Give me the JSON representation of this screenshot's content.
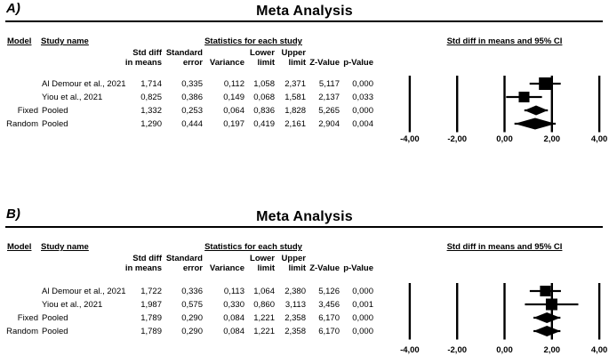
{
  "figure_title": "Meta Analysis",
  "colors": {
    "foreground": "#000000",
    "background": "#ffffff"
  },
  "panels": [
    {
      "panel_label": "A)",
      "title": "Meta Analysis",
      "table": {
        "col_model": "Model",
        "col_study": "Study name",
        "stats_group_header": "Statistics for each study",
        "plot_group_header": "Std diff in means and 95% CI",
        "stat_columns": [
          {
            "line1": "Std diff",
            "line2": "in means"
          },
          {
            "line1": "Standard",
            "line2": "error"
          },
          {
            "line1": "",
            "line2": "Variance"
          },
          {
            "line1": "Lower",
            "line2": "limit"
          },
          {
            "line1": "Upper",
            "line2": "limit"
          },
          {
            "line1": "",
            "line2": "Z-Value"
          },
          {
            "line1": "",
            "line2": "p-Value"
          }
        ],
        "rows": [
          {
            "model": "",
            "study": "Al Demour et al., 2021",
            "values": [
              "1,714",
              "0,335",
              "0,112",
              "1,058",
              "2,371",
              "5,117",
              "0,000"
            ]
          },
          {
            "model": "",
            "study": "Yiou et al., 2021",
            "values": [
              "0,825",
              "0,386",
              "0,149",
              "0,068",
              "1,581",
              "2,137",
              "0,033"
            ]
          },
          {
            "model": "Fixed",
            "study": "Pooled",
            "values": [
              "1,332",
              "0,253",
              "0,064",
              "0,836",
              "1,828",
              "5,265",
              "0,000"
            ]
          },
          {
            "model": "Random",
            "study": "Pooled",
            "values": [
              "1,290",
              "0,444",
              "0,197",
              "0,419",
              "2,161",
              "2,904",
              "0,004"
            ]
          }
        ]
      }
    },
    {
      "panel_label": "B)",
      "title": "Meta Analysis",
      "table": {
        "col_model": "Model",
        "col_study": "Study name",
        "stats_group_header": "Statistics for each study",
        "plot_group_header": "Std diff in means and 95% CI",
        "stat_columns": [
          {
            "line1": "Std diff",
            "line2": "in means"
          },
          {
            "line1": "Standard",
            "line2": "error"
          },
          {
            "line1": "",
            "line2": "Variance"
          },
          {
            "line1": "Lower",
            "line2": "limit"
          },
          {
            "line1": "Upper",
            "line2": "limit"
          },
          {
            "line1": "",
            "line2": "Z-Value"
          },
          {
            "line1": "",
            "line2": "p-Value"
          }
        ],
        "rows": [
          {
            "model": "",
            "study": "Al Demour et al., 2021",
            "values": [
              "1,722",
              "0,336",
              "0,113",
              "1,064",
              "2,380",
              "5,126",
              "0,000"
            ]
          },
          {
            "model": "",
            "study": "Yiou et al., 2021",
            "values": [
              "1,987",
              "0,575",
              "0,330",
              "0,860",
              "3,113",
              "3,456",
              "0,001"
            ]
          },
          {
            "model": "Fixed",
            "study": "Pooled",
            "values": [
              "1,789",
              "0,290",
              "0,084",
              "1,221",
              "2,358",
              "6,170",
              "0,000"
            ]
          },
          {
            "model": "Random",
            "study": "Pooled",
            "values": [
              "1,789",
              "0,290",
              "0,084",
              "1,221",
              "2,358",
              "6,170",
              "0,000"
            ]
          }
        ]
      }
    }
  ],
  "chart_data": [
    {
      "type": "forest",
      "panel": "A",
      "title": "Meta Analysis",
      "xlabel": "Std diff in means and 95% CI",
      "xlim": [
        -4,
        4
      ],
      "grid": "vertical reference lines at each tick",
      "ticks": [
        {
          "label": "-4,00",
          "value": -4
        },
        {
          "label": "-2,00",
          "value": -2
        },
        {
          "label": "0,00",
          "value": 0
        },
        {
          "label": "2,00",
          "value": 2
        },
        {
          "label": "4,00",
          "value": 4
        }
      ],
      "markers": [
        {
          "study": "Al Demour et al., 2021",
          "model": "",
          "shape": "square",
          "estimate": 1.714,
          "lower": 1.058,
          "upper": 2.371,
          "size": 14
        },
        {
          "study": "Yiou et al., 2021",
          "model": "",
          "shape": "square",
          "estimate": 0.825,
          "lower": 0.068,
          "upper": 1.581,
          "size": 12
        },
        {
          "study": "Pooled",
          "model": "Fixed",
          "shape": "diamond",
          "estimate": 1.332,
          "lower": 0.836,
          "upper": 1.828,
          "size": 11
        },
        {
          "study": "Pooled",
          "model": "Random",
          "shape": "diamond",
          "estimate": 1.29,
          "lower": 0.419,
          "upper": 2.161,
          "size": 13
        }
      ]
    },
    {
      "type": "forest",
      "panel": "B",
      "title": "Meta Analysis",
      "xlabel": "Std diff in means and 95% CI",
      "xlim": [
        -4,
        4
      ],
      "grid": "vertical reference lines at each tick",
      "ticks": [
        {
          "label": "-4,00",
          "value": -4
        },
        {
          "label": "-2,00",
          "value": -2
        },
        {
          "label": "0,00",
          "value": 0
        },
        {
          "label": "2,00",
          "value": 2
        },
        {
          "label": "4,00",
          "value": 4
        }
      ],
      "markers": [
        {
          "study": "Al Demour et al., 2021",
          "model": "",
          "shape": "square",
          "estimate": 1.722,
          "lower": 1.064,
          "upper": 2.38,
          "size": 12
        },
        {
          "study": "Yiou et al., 2021",
          "model": "",
          "shape": "square",
          "estimate": 1.987,
          "lower": 0.86,
          "upper": 3.113,
          "size": 13
        },
        {
          "study": "Pooled",
          "model": "Fixed",
          "shape": "diamond",
          "estimate": 1.789,
          "lower": 1.221,
          "upper": 2.358,
          "size": 12
        },
        {
          "study": "Pooled",
          "model": "Random",
          "shape": "diamond",
          "estimate": 1.789,
          "lower": 1.221,
          "upper": 2.358,
          "size": 12
        }
      ]
    }
  ]
}
